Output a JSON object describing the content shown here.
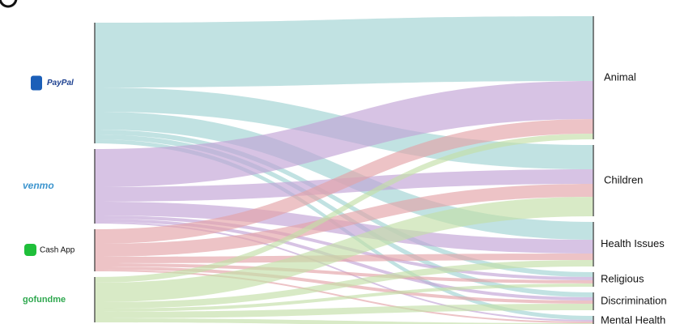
{
  "chart_data": {
    "type": "sankey",
    "nodes": [
      {
        "label": "PayPal",
        "color": "#9fd3d3"
      },
      {
        "label": "venmo",
        "color": "#c2a3d6"
      },
      {
        "label": "Cash App",
        "color": "#e3a3a8"
      },
      {
        "label": "gofundme",
        "color": "#c3dea8"
      },
      {
        "label": "Animal"
      },
      {
        "label": "Children"
      },
      {
        "label": "Health Issues"
      },
      {
        "label": "Religious"
      },
      {
        "label": "Discrimination"
      },
      {
        "label": "Mental Health"
      }
    ],
    "links": [
      {
        "source": 0,
        "target": 4,
        "value": 80
      },
      {
        "source": 0,
        "target": 5,
        "value": 30
      },
      {
        "source": 0,
        "target": 6,
        "value": 22
      },
      {
        "source": 0,
        "target": 7,
        "value": 6
      },
      {
        "source": 0,
        "target": 8,
        "value": 6
      },
      {
        "source": 0,
        "target": 9,
        "value": 5
      },
      {
        "source": 1,
        "target": 4,
        "value": 47
      },
      {
        "source": 1,
        "target": 5,
        "value": 18
      },
      {
        "source": 1,
        "target": 6,
        "value": 17
      },
      {
        "source": 1,
        "target": 7,
        "value": 4
      },
      {
        "source": 1,
        "target": 8,
        "value": 4
      },
      {
        "source": 1,
        "target": 9,
        "value": 2
      },
      {
        "source": 2,
        "target": 4,
        "value": 18
      },
      {
        "source": 2,
        "target": 5,
        "value": 16
      },
      {
        "source": 2,
        "target": 6,
        "value": 8
      },
      {
        "source": 2,
        "target": 7,
        "value": 4
      },
      {
        "source": 2,
        "target": 8,
        "value": 4
      },
      {
        "source": 2,
        "target": 9,
        "value": 2
      },
      {
        "source": 3,
        "target": 4,
        "value": 7
      },
      {
        "source": 3,
        "target": 5,
        "value": 24
      },
      {
        "source": 3,
        "target": 6,
        "value": 8
      },
      {
        "source": 3,
        "target": 7,
        "value": 4
      },
      {
        "source": 3,
        "target": 8,
        "value": 8
      },
      {
        "source": 3,
        "target": 9,
        "value": 5
      }
    ]
  }
}
